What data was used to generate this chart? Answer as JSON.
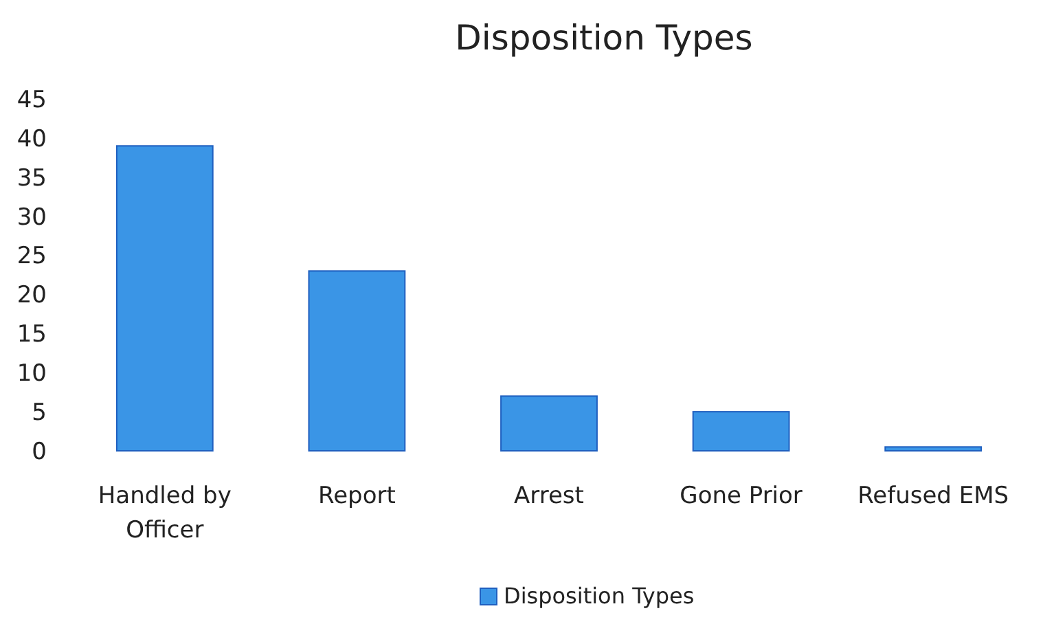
{
  "chart_data": {
    "type": "bar",
    "title": "Disposition Types",
    "categories": [
      "Handled by Officer",
      "Report",
      "Arrest",
      "Gone Prior",
      "Refused EMS"
    ],
    "series": [
      {
        "name": "Disposition Types",
        "color": "#3a95e6",
        "values": [
          39,
          23,
          7,
          5,
          0.5
        ]
      }
    ],
    "ylim": [
      0,
      45
    ],
    "yticks": [
      0,
      5,
      10,
      15,
      20,
      25,
      30,
      35,
      40,
      45
    ],
    "grid": false,
    "legend": "bottom"
  }
}
